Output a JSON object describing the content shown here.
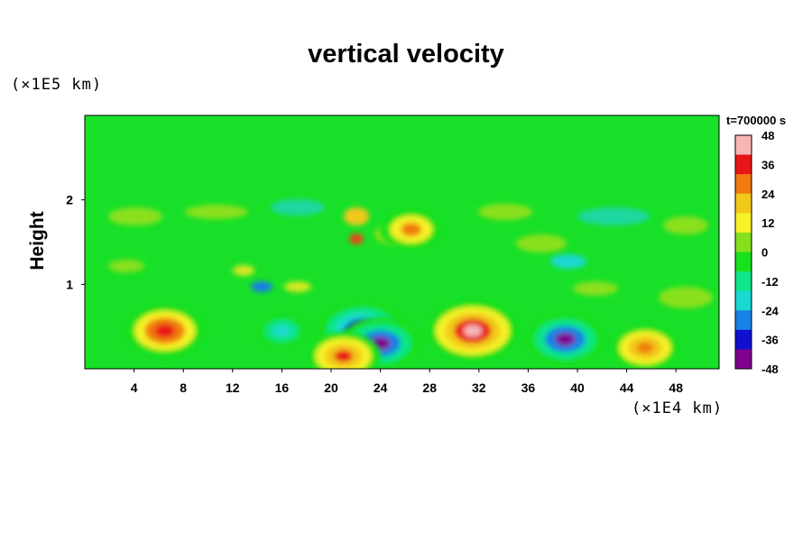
{
  "chart_data": {
    "type": "heatmap",
    "title": "vertical velocity",
    "ylabel": "Height",
    "y_unit": "(×1E5 km)",
    "x_unit": "(×1E4 km)",
    "xlim": [
      0,
      51.5
    ],
    "ylim": [
      0,
      3
    ],
    "x_ticks": [
      "4",
      "8",
      "12",
      "16",
      "20",
      "24",
      "28",
      "32",
      "36",
      "40",
      "44",
      "48"
    ],
    "y_ticks": [
      "1",
      "2"
    ],
    "time_label": "t=700000 s",
    "colorbar": {
      "range": [
        -48,
        48
      ],
      "ticks": [
        "48",
        "36",
        "24",
        "12",
        "0",
        "-12",
        "-24",
        "-36",
        "-48"
      ],
      "colors": [
        "#f7b5b5",
        "#e81616",
        "#f07c10",
        "#f2c81a",
        "#f6f226",
        "#84e01c",
        "#18e01e",
        "#10e58a",
        "#1ad8d2",
        "#1880e6",
        "#1010d0",
        "#800090"
      ]
    },
    "features": [
      {
        "x": 6.5,
        "y": 0.45,
        "value": 40
      },
      {
        "x": 22.5,
        "y": 0.45,
        "value": -45
      },
      {
        "x": 24.0,
        "y": 0.3,
        "value": -40
      },
      {
        "x": 21.0,
        "y": 0.15,
        "value": 36
      },
      {
        "x": 26.5,
        "y": 1.65,
        "value": 28
      },
      {
        "x": 31.5,
        "y": 0.45,
        "value": 48
      },
      {
        "x": 39.0,
        "y": 0.35,
        "value": -40
      },
      {
        "x": 45.5,
        "y": 0.25,
        "value": 32
      },
      {
        "x": 16.0,
        "y": 0.45,
        "value": -20
      }
    ]
  }
}
